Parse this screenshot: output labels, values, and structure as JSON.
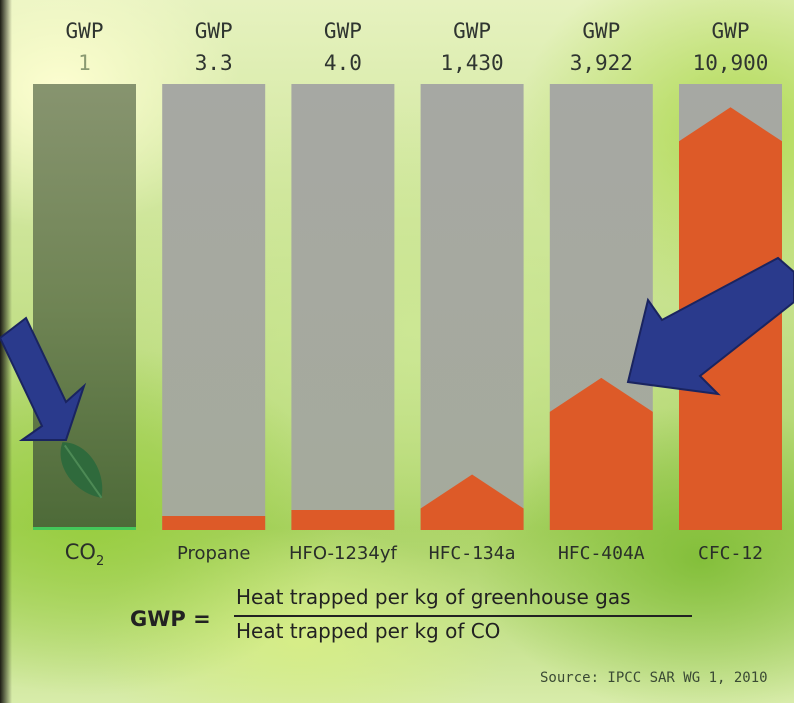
{
  "chart_data": {
    "type": "bar",
    "header_label": "GWP",
    "categories": [
      "CO2",
      "Propane",
      "HFO-1234yf",
      "HFC-134a",
      "HFC-404A",
      "CFC-12"
    ],
    "value_labels": [
      "1",
      "3.3",
      "4.0",
      "1,430",
      "3,922",
      "10,900"
    ],
    "values": [
      1,
      3.3,
      4.0,
      1430,
      3922,
      10900
    ],
    "ylim": [
      0,
      11500
    ],
    "grid": false,
    "legend": "none",
    "colors": {
      "fill": "#dd5a28",
      "track": "#a9aca4",
      "co2_track": "#6f8a55",
      "co2_baseline": "#44c75a",
      "arrow": "#2a3a8c",
      "arrow_outline": "#1a2460",
      "leaf": "#2f6a3c"
    }
  },
  "formula": {
    "lhs": "GWP =",
    "numerator": "Heat trapped per kg of greenhouse gas",
    "denominator": "Heat trapped per kg of CO"
  },
  "source": "Source: IPCC SAR WG 1, 2010",
  "icons": [
    "leaf-icon",
    "arrow-icon"
  ]
}
